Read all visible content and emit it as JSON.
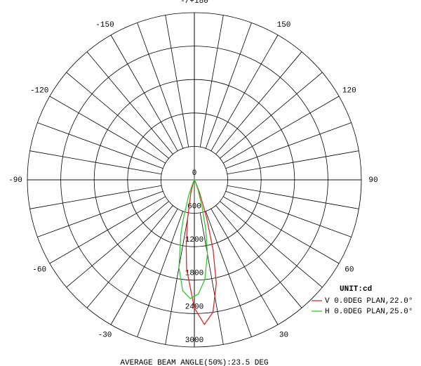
{
  "chart_data": {
    "type": "polar",
    "rlim": [
      0,
      3000
    ],
    "rticks": [
      0,
      600,
      1200,
      1800,
      2400,
      3000
    ],
    "theta_ticks": [
      {
        "value": 180,
        "label": "-/+180"
      },
      150,
      120,
      90,
      60,
      30,
      -30,
      -60,
      -90,
      -120,
      -150
    ],
    "legend_title": "UNIT:cd",
    "series": [
      {
        "name": "V 0.0DEG PLAN,22.0°",
        "color": "#e02828",
        "theta": [
          -20,
          -15,
          -10,
          -7,
          -5,
          0,
          4,
          8,
          12,
          15,
          18,
          22,
          26
        ],
        "values": [
          60,
          250,
          700,
          1200,
          1600,
          2300,
          2600,
          2400,
          1900,
          1300,
          700,
          250,
          60
        ]
      },
      {
        "name": "H 0.0DEG PLAN,25.0°",
        "color": "#28d028",
        "theta": [
          -24,
          -20,
          -16,
          -14,
          -10,
          -6,
          -2,
          2,
          6,
          10,
          13,
          16,
          20,
          24
        ],
        "values": [
          80,
          300,
          700,
          1000,
          1600,
          2000,
          2130,
          2050,
          1800,
          1350,
          900,
          500,
          200,
          60
        ]
      }
    ],
    "footer": "AVERAGE BEAM ANGLE(50%):23.5 DEG"
  }
}
